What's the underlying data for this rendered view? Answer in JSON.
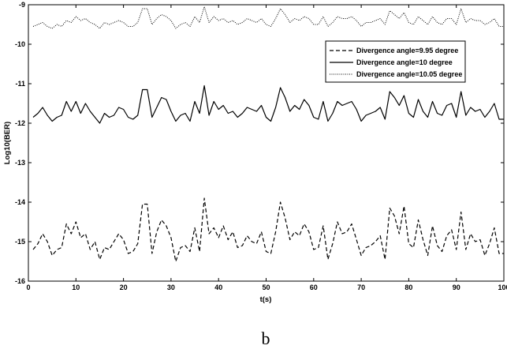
{
  "chart_data": {
    "type": "line",
    "title": "",
    "xlabel": "t(s)",
    "ylabel": "Log10(BER)",
    "xlim": [
      0,
      100
    ],
    "ylim": [
      -16,
      -9
    ],
    "xticks": [
      0,
      10,
      20,
      30,
      40,
      50,
      60,
      70,
      80,
      90,
      100
    ],
    "yticks": [
      -9,
      -10,
      -11,
      -12,
      -13,
      -14,
      -15,
      -16
    ],
    "grid": false,
    "legend_position": "top-right",
    "x": [
      1,
      2,
      3,
      4,
      5,
      6,
      7,
      8,
      9,
      10,
      11,
      12,
      13,
      14,
      15,
      16,
      17,
      18,
      19,
      20,
      21,
      22,
      23,
      24,
      25,
      26,
      27,
      28,
      29,
      30,
      31,
      32,
      33,
      34,
      35,
      36,
      37,
      38,
      39,
      40,
      41,
      42,
      43,
      44,
      45,
      46,
      47,
      48,
      49,
      50,
      51,
      52,
      53,
      54,
      55,
      56,
      57,
      58,
      59,
      60,
      61,
      62,
      63,
      64,
      65,
      66,
      67,
      68,
      69,
      70,
      71,
      72,
      73,
      74,
      75,
      76,
      77,
      78,
      79,
      80,
      81,
      82,
      83,
      84,
      85,
      86,
      87,
      88,
      89,
      90,
      91,
      92,
      93,
      94,
      95,
      96,
      97,
      98,
      99,
      100
    ],
    "series": [
      {
        "name": "Divergence angle=9.95 degree",
        "style": "dashed",
        "values": [
          -15.2,
          -15.05,
          -14.8,
          -15.0,
          -15.35,
          -15.2,
          -15.15,
          -14.55,
          -14.8,
          -14.5,
          -14.9,
          -14.8,
          -15.2,
          -15.0,
          -15.45,
          -15.15,
          -15.2,
          -15.0,
          -14.8,
          -14.95,
          -15.3,
          -15.25,
          -15.05,
          -14.05,
          -14.05,
          -15.3,
          -14.75,
          -14.45,
          -14.6,
          -14.9,
          -15.5,
          -15.15,
          -15.1,
          -15.25,
          -14.65,
          -15.25,
          -13.9,
          -14.8,
          -14.65,
          -14.9,
          -14.6,
          -14.95,
          -14.75,
          -15.15,
          -15.1,
          -14.85,
          -15.0,
          -15.05,
          -14.75,
          -15.25,
          -15.3,
          -14.75,
          -14.0,
          -14.4,
          -14.95,
          -14.75,
          -14.85,
          -14.55,
          -14.75,
          -15.2,
          -15.15,
          -14.6,
          -15.45,
          -15.05,
          -14.5,
          -14.8,
          -14.75,
          -14.55,
          -14.95,
          -15.35,
          -15.15,
          -15.1,
          -15.0,
          -14.85,
          -15.45,
          -14.15,
          -14.35,
          -14.8,
          -14.1,
          -15.05,
          -15.15,
          -14.45,
          -14.95,
          -15.35,
          -14.6,
          -15.1,
          -15.25,
          -14.85,
          -14.7,
          -15.2,
          -14.25,
          -15.2,
          -14.8,
          -15.0,
          -14.95,
          -15.35,
          -15.05,
          -14.65,
          -15.3,
          -15.3
        ]
      },
      {
        "name": "Divergence angle=10 degree",
        "style": "solid",
        "values": [
          -11.85,
          -11.75,
          -11.6,
          -11.8,
          -11.95,
          -11.85,
          -11.8,
          -11.45,
          -11.7,
          -11.45,
          -11.75,
          -11.5,
          -11.7,
          -11.85,
          -12.0,
          -11.75,
          -11.85,
          -11.8,
          -11.6,
          -11.65,
          -11.85,
          -11.9,
          -11.8,
          -11.15,
          -11.15,
          -11.85,
          -11.6,
          -11.35,
          -11.4,
          -11.7,
          -11.95,
          -11.8,
          -11.75,
          -11.95,
          -11.45,
          -11.75,
          -11.05,
          -11.8,
          -11.45,
          -11.65,
          -11.55,
          -11.75,
          -11.7,
          -11.85,
          -11.75,
          -11.6,
          -11.65,
          -11.7,
          -11.55,
          -11.85,
          -11.95,
          -11.6,
          -11.1,
          -11.35,
          -11.7,
          -11.55,
          -11.65,
          -11.4,
          -11.55,
          -11.85,
          -11.9,
          -11.45,
          -11.95,
          -11.75,
          -11.45,
          -11.55,
          -11.5,
          -11.45,
          -11.65,
          -11.95,
          -11.8,
          -11.75,
          -11.7,
          -11.6,
          -11.9,
          -11.2,
          -11.35,
          -11.55,
          -11.3,
          -11.75,
          -11.85,
          -11.4,
          -11.7,
          -11.85,
          -11.45,
          -11.75,
          -11.8,
          -11.55,
          -11.5,
          -11.85,
          -11.2,
          -11.8,
          -11.6,
          -11.7,
          -11.65,
          -11.85,
          -11.7,
          -11.5,
          -11.9,
          -11.9
        ]
      },
      {
        "name": "Divergence angle=10.05 degree",
        "style": "dotted",
        "values": [
          -9.55,
          -9.5,
          -9.45,
          -9.55,
          -9.6,
          -9.5,
          -9.55,
          -9.4,
          -9.45,
          -9.3,
          -9.4,
          -9.35,
          -9.45,
          -9.5,
          -9.6,
          -9.45,
          -9.5,
          -9.45,
          -9.4,
          -9.45,
          -9.55,
          -9.55,
          -9.45,
          -9.1,
          -9.1,
          -9.5,
          -9.35,
          -9.25,
          -9.3,
          -9.4,
          -9.6,
          -9.5,
          -9.45,
          -9.55,
          -9.3,
          -9.45,
          -9.05,
          -9.45,
          -9.3,
          -9.4,
          -9.35,
          -9.45,
          -9.4,
          -9.5,
          -9.45,
          -9.35,
          -9.4,
          -9.45,
          -9.35,
          -9.5,
          -9.55,
          -9.35,
          -9.1,
          -9.25,
          -9.45,
          -9.35,
          -9.4,
          -9.3,
          -9.35,
          -9.5,
          -9.5,
          -9.3,
          -9.55,
          -9.45,
          -9.3,
          -9.35,
          -9.35,
          -9.3,
          -9.4,
          -9.55,
          -9.45,
          -9.45,
          -9.4,
          -9.35,
          -9.5,
          -9.15,
          -9.25,
          -9.35,
          -9.2,
          -9.45,
          -9.5,
          -9.3,
          -9.4,
          -9.5,
          -9.3,
          -9.45,
          -9.5,
          -9.35,
          -9.35,
          -9.5,
          -9.1,
          -9.45,
          -9.35,
          -9.4,
          -9.4,
          -9.5,
          -9.45,
          -9.35,
          -9.55,
          -9.55
        ]
      }
    ]
  },
  "caption": "b"
}
